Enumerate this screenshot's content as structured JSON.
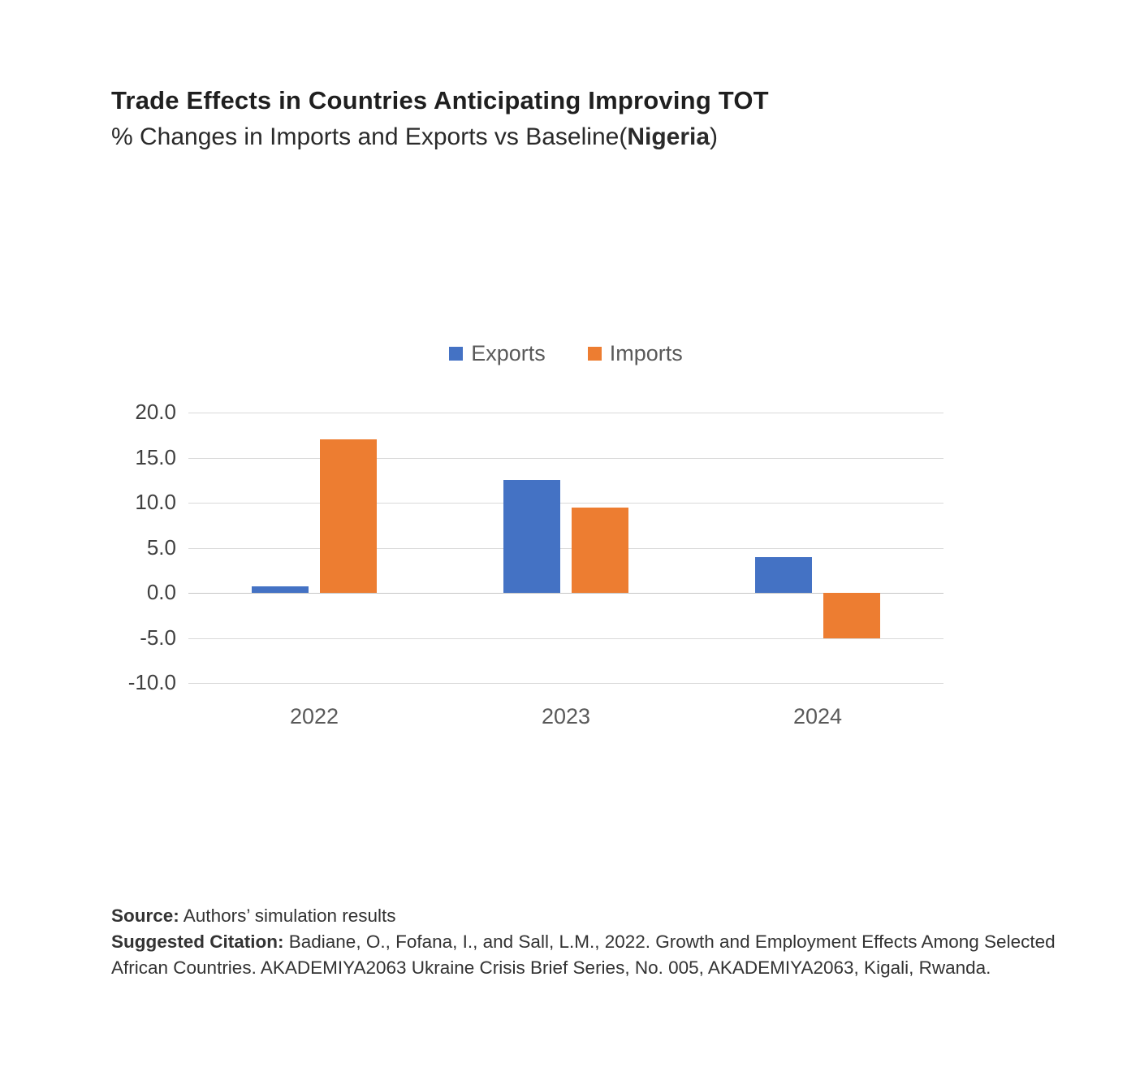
{
  "header": {
    "title": "Trade Effects in Countries Anticipating Improving TOT",
    "subtitle_prefix": "% Changes in Imports and Exports vs Baseline(",
    "subtitle_bold": "Nigeria",
    "subtitle_suffix": ")"
  },
  "chart_data": {
    "type": "bar",
    "title": "Trade Effects in Countries Anticipating Improving TOT",
    "subtitle": "% Changes in Imports and Exports vs Baseline(Nigeria)",
    "xlabel": "",
    "ylabel": "",
    "categories": [
      "2022",
      "2023",
      "2024"
    ],
    "series": [
      {
        "name": "Exports",
        "color": "#4472C4",
        "values": [
          0.7,
          12.5,
          4.0
        ]
      },
      {
        "name": "Imports",
        "color": "#ED7D31",
        "values": [
          17.0,
          9.5,
          -5.0
        ]
      }
    ],
    "ylim": [
      -10,
      20
    ],
    "ytick_labels": [
      "20.0",
      "15.0",
      "10.0",
      "5.0",
      "0.0",
      "-5.0",
      "-10.0"
    ],
    "grid": true,
    "legend_position": "top-center"
  },
  "footer": {
    "source_label": "Source:",
    "source_text": " Authors’ simulation results",
    "citation_label": "Suggested Citation:",
    "citation_text": " Badiane, O., Fofana, I., and Sall, L.M., 2022. Growth and Employment Effects Among Selected African Countries. AKADEMIYA2063 Ukraine Crisis Brief Series, No. 005, AKADEMIYA2063, Kigali, Rwanda."
  }
}
